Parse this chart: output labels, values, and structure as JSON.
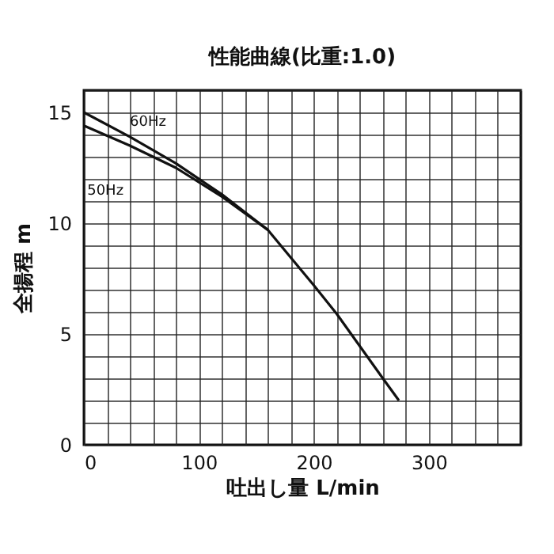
{
  "chart_data": {
    "type": "line",
    "title": "性能曲線(比重:1.0)",
    "xlabel": "吐出し量 L/min",
    "ylabel": "全揚程 m",
    "xlim": [
      0,
      380
    ],
    "xticks": [
      0,
      {
        "value": 20,
        "label": null
      },
      {
        "value": 40,
        "label": null
      },
      {
        "value": 60,
        "label": null
      },
      {
        "value": 80,
        "label": null
      },
      100,
      {
        "value": 120,
        "label": null
      },
      {
        "value": 140,
        "label": null
      },
      {
        "value": 160,
        "label": null
      },
      {
        "value": 180,
        "label": null
      },
      200,
      {
        "value": 220,
        "label": null
      },
      {
        "value": 240,
        "label": null
      },
      {
        "value": 260,
        "label": null
      },
      {
        "value": 280,
        "label": null
      },
      300,
      {
        "value": 320,
        "label": null
      },
      {
        "value": 340,
        "label": null
      },
      {
        "value": 360,
        "label": null
      },
      {
        "value": 380,
        "label": null
      }
    ],
    "ylim": [
      0,
      16
    ],
    "yticks": [
      0,
      {
        "value": 1,
        "label": null
      },
      {
        "value": 2,
        "label": null
      },
      {
        "value": 3,
        "label": null
      },
      {
        "value": 4,
        "label": null
      },
      5,
      {
        "value": 6,
        "label": null
      },
      {
        "value": 7,
        "label": null
      },
      {
        "value": 8,
        "label": null
      },
      {
        "value": 9,
        "label": null
      },
      10,
      {
        "value": 11,
        "label": null
      },
      {
        "value": 12,
        "label": null
      },
      {
        "value": 13,
        "label": null
      },
      {
        "value": 14,
        "label": null
      },
      15,
      {
        "value": 16,
        "label": null
      }
    ],
    "grid": true,
    "marker": "none",
    "line_style": "solid",
    "series": [
      {
        "name": "60Hz",
        "color": "#111111",
        "x": [
          0,
          40,
          80,
          120,
          160,
          200,
          220,
          260,
          274
        ],
        "values": [
          15,
          13.9,
          12.7,
          11.3,
          9.7,
          7.2,
          5.9,
          3.0,
          2.0
        ]
      },
      {
        "name": "50Hz",
        "color": "#111111",
        "x": [
          0,
          40,
          80,
          120,
          160
        ],
        "values": [
          14.4,
          13.5,
          12.5,
          11.2,
          9.7
        ]
      }
    ]
  }
}
